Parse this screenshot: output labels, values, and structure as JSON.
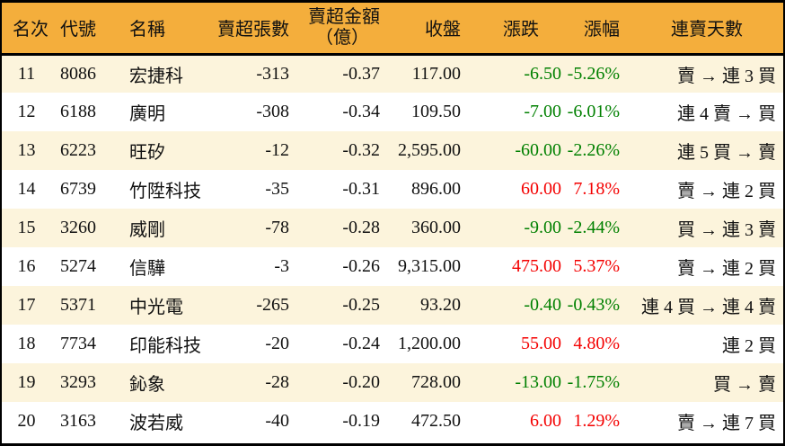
{
  "colors": {
    "header_bg": "#F4AE3C",
    "stripe_bg": "#FCF4DC",
    "row_bg": "#FFFFFF",
    "up_red": "#F40000",
    "down_green": "#008000",
    "border": "#000000",
    "text": "#111111"
  },
  "chart_data": {
    "type": "table",
    "columns": [
      "名次",
      "代號",
      "名稱",
      "賣超張數",
      "賣超金額（億）",
      "收盤",
      "漲跌",
      "漲幅",
      "連賣天數"
    ],
    "headers": {
      "rank": "名次",
      "code": "代號",
      "name": "名稱",
      "sell_volume": "賣超張數",
      "sell_amount_line1": "賣超金額",
      "sell_amount_line2": "（億）",
      "close": "收盤",
      "change": "漲跌",
      "change_pct": "漲幅",
      "streak": "連賣天數"
    },
    "rows": [
      {
        "rank": "11",
        "code": "8086",
        "name": "宏捷科",
        "sell_volume": "-313",
        "sell_amount": "-0.37",
        "close": "117.00",
        "change": "-6.50",
        "change_pct": "-5.26%",
        "streak": "賣 → 連 3 買"
      },
      {
        "rank": "12",
        "code": "6188",
        "name": "廣明",
        "sell_volume": "-308",
        "sell_amount": "-0.34",
        "close": "109.50",
        "change": "-7.00",
        "change_pct": "-6.01%",
        "streak": "連 4 賣 → 買"
      },
      {
        "rank": "13",
        "code": "6223",
        "name": "旺矽",
        "sell_volume": "-12",
        "sell_amount": "-0.32",
        "close": "2,595.00",
        "change": "-60.00",
        "change_pct": "-2.26%",
        "streak": "連 5 買 → 賣"
      },
      {
        "rank": "14",
        "code": "6739",
        "name": "竹陞科技",
        "sell_volume": "-35",
        "sell_amount": "-0.31",
        "close": "896.00",
        "change": "60.00",
        "change_pct": "7.18%",
        "streak": "賣 → 連 2 買"
      },
      {
        "rank": "15",
        "code": "3260",
        "name": "威剛",
        "sell_volume": "-78",
        "sell_amount": "-0.28",
        "close": "360.00",
        "change": "-9.00",
        "change_pct": "-2.44%",
        "streak": "買 → 連 3 賣"
      },
      {
        "rank": "16",
        "code": "5274",
        "name": "信驊",
        "sell_volume": "-3",
        "sell_amount": "-0.26",
        "close": "9,315.00",
        "change": "475.00",
        "change_pct": "5.37%",
        "streak": "賣 → 連 2 買"
      },
      {
        "rank": "17",
        "code": "5371",
        "name": "中光電",
        "sell_volume": "-265",
        "sell_amount": "-0.25",
        "close": "93.20",
        "change": "-0.40",
        "change_pct": "-0.43%",
        "streak": "連 4 買 → 連 4 賣"
      },
      {
        "rank": "18",
        "code": "7734",
        "name": "印能科技",
        "sell_volume": "-20",
        "sell_amount": "-0.24",
        "close": "1,200.00",
        "change": "55.00",
        "change_pct": "4.80%",
        "streak": "連 2 買"
      },
      {
        "rank": "19",
        "code": "3293",
        "name": "鈊象",
        "sell_volume": "-28",
        "sell_amount": "-0.20",
        "close": "728.00",
        "change": "-13.00",
        "change_pct": "-1.75%",
        "streak": "買 → 賣"
      },
      {
        "rank": "20",
        "code": "3163",
        "name": "波若威",
        "sell_volume": "-40",
        "sell_amount": "-0.19",
        "close": "472.50",
        "change": "6.00",
        "change_pct": "1.29%",
        "streak": "賣 → 連 7 買"
      }
    ]
  }
}
